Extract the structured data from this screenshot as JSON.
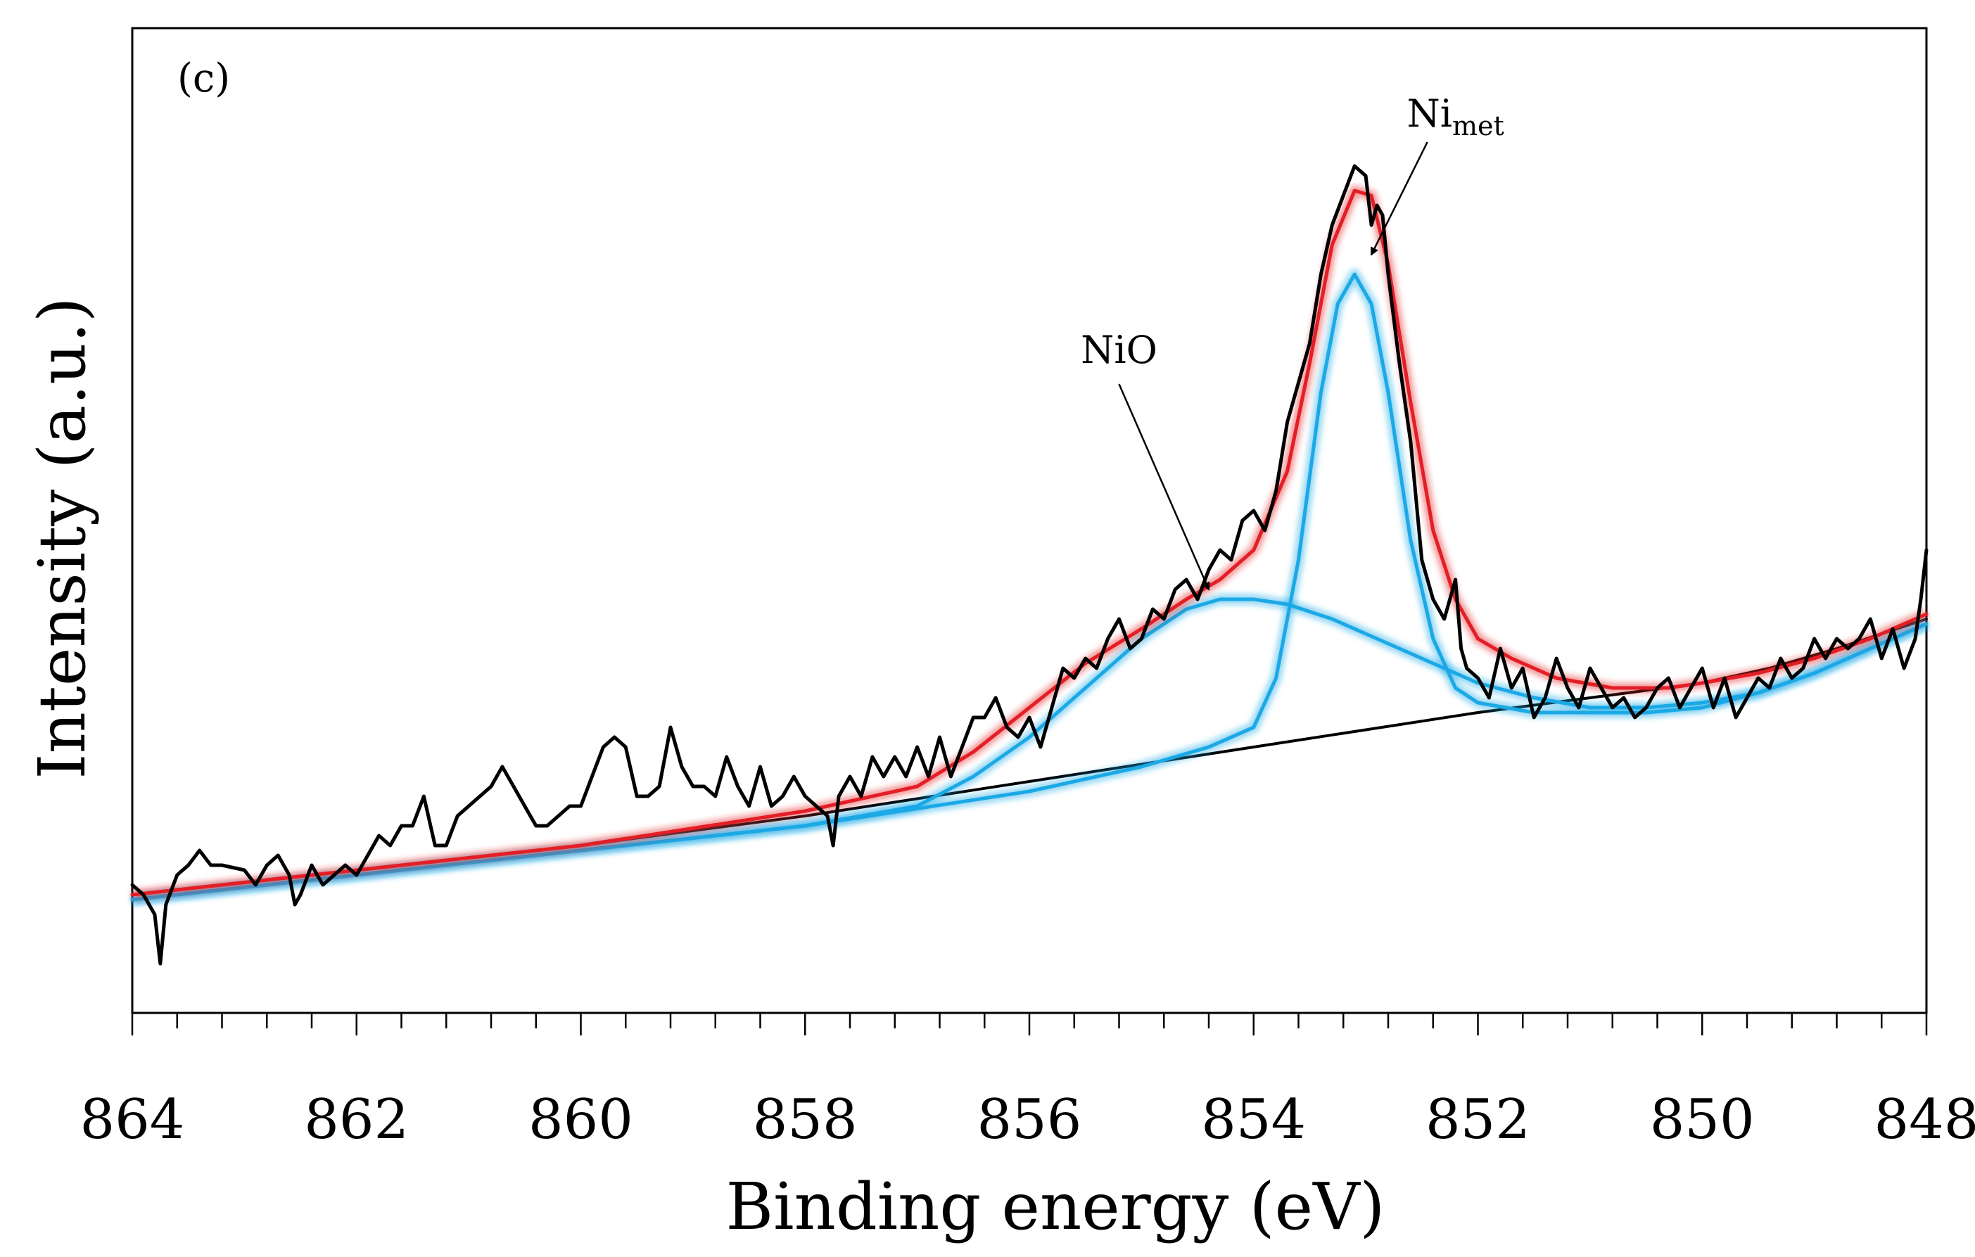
{
  "chart_data": {
    "type": "line",
    "panel_label": "(c)",
    "xlabel": "Binding energy (eV)",
    "ylabel": "Intensity (a.u.)",
    "xlim": [
      864,
      848
    ],
    "x_reversed": true,
    "ylim": [
      0,
      1
    ],
    "y_ticks_shown": false,
    "x_ticks": [
      864,
      862,
      860,
      858,
      856,
      854,
      852,
      850,
      848
    ],
    "x_minor_step": 0.4,
    "grid": false,
    "legend": "none",
    "colors": {
      "experimental": "#000000",
      "envelope": "#e41e26",
      "components": "#1ba9e6",
      "background": "#000000"
    },
    "series": [
      {
        "id": "background",
        "points": [
          [
            864,
            0.12
          ],
          [
            862,
            0.145
          ],
          [
            860,
            0.17
          ],
          [
            858,
            0.2
          ],
          [
            856,
            0.235
          ],
          [
            854,
            0.27
          ],
          [
            852,
            0.305
          ],
          [
            851,
            0.32
          ],
          [
            850,
            0.335
          ],
          [
            849.4,
            0.35
          ],
          [
            848.8,
            0.37
          ],
          [
            848,
            0.4
          ]
        ]
      },
      {
        "id": "nio-component",
        "points": [
          [
            864,
            0.115
          ],
          [
            862,
            0.14
          ],
          [
            860,
            0.165
          ],
          [
            858,
            0.19
          ],
          [
            857,
            0.21
          ],
          [
            856.5,
            0.24
          ],
          [
            856,
            0.28
          ],
          [
            855.5,
            0.33
          ],
          [
            855,
            0.38
          ],
          [
            854.6,
            0.41
          ],
          [
            854.3,
            0.42
          ],
          [
            854.0,
            0.42
          ],
          [
            853.7,
            0.415
          ],
          [
            853.3,
            0.4
          ],
          [
            853.0,
            0.385
          ],
          [
            852.5,
            0.36
          ],
          [
            852.0,
            0.335
          ],
          [
            851.5,
            0.32
          ],
          [
            851.0,
            0.31
          ],
          [
            850.5,
            0.31
          ],
          [
            850,
            0.315
          ],
          [
            849.5,
            0.325
          ],
          [
            849,
            0.345
          ],
          [
            848.5,
            0.37
          ],
          [
            848,
            0.395
          ]
        ]
      },
      {
        "id": "nimet-component",
        "points": [
          [
            864,
            0.115
          ],
          [
            862,
            0.14
          ],
          [
            860,
            0.165
          ],
          [
            858,
            0.19
          ],
          [
            856,
            0.225
          ],
          [
            855,
            0.25
          ],
          [
            854.4,
            0.27
          ],
          [
            854.0,
            0.29
          ],
          [
            853.8,
            0.34
          ],
          [
            853.6,
            0.46
          ],
          [
            853.4,
            0.63
          ],
          [
            853.25,
            0.72
          ],
          [
            853.1,
            0.75
          ],
          [
            852.95,
            0.72
          ],
          [
            852.8,
            0.63
          ],
          [
            852.6,
            0.48
          ],
          [
            852.4,
            0.38
          ],
          [
            852.2,
            0.33
          ],
          [
            852.0,
            0.315
          ],
          [
            851.5,
            0.305
          ],
          [
            851,
            0.305
          ],
          [
            850.5,
            0.305
          ],
          [
            850,
            0.31
          ],
          [
            849.5,
            0.325
          ],
          [
            849,
            0.345
          ],
          [
            848.5,
            0.37
          ],
          [
            848,
            0.395
          ]
        ]
      },
      {
        "id": "envelope",
        "points": [
          [
            864,
            0.12
          ],
          [
            862,
            0.145
          ],
          [
            860,
            0.17
          ],
          [
            858,
            0.205
          ],
          [
            857,
            0.23
          ],
          [
            856.5,
            0.265
          ],
          [
            856,
            0.31
          ],
          [
            855.5,
            0.355
          ],
          [
            855,
            0.39
          ],
          [
            854.6,
            0.42
          ],
          [
            854.3,
            0.44
          ],
          [
            854.0,
            0.47
          ],
          [
            853.7,
            0.55
          ],
          [
            853.5,
            0.66
          ],
          [
            853.3,
            0.78
          ],
          [
            853.1,
            0.835
          ],
          [
            852.95,
            0.83
          ],
          [
            852.8,
            0.76
          ],
          [
            852.6,
            0.62
          ],
          [
            852.4,
            0.49
          ],
          [
            852.2,
            0.42
          ],
          [
            852.0,
            0.38
          ],
          [
            851.7,
            0.36
          ],
          [
            851.3,
            0.34
          ],
          [
            850.8,
            0.33
          ],
          [
            850.3,
            0.33
          ],
          [
            850,
            0.335
          ],
          [
            849.5,
            0.345
          ],
          [
            849,
            0.36
          ],
          [
            848.5,
            0.38
          ],
          [
            848,
            0.405
          ]
        ]
      },
      {
        "id": "experimental",
        "points": [
          [
            864,
            0.13
          ],
          [
            863.9,
            0.12
          ],
          [
            863.8,
            0.1
          ],
          [
            863.75,
            0.05
          ],
          [
            863.7,
            0.11
          ],
          [
            863.6,
            0.14
          ],
          [
            863.5,
            0.15
          ],
          [
            863.4,
            0.165
          ],
          [
            863.3,
            0.15
          ],
          [
            863.2,
            0.15
          ],
          [
            863.0,
            0.145
          ],
          [
            862.9,
            0.13
          ],
          [
            862.8,
            0.15
          ],
          [
            862.7,
            0.16
          ],
          [
            862.6,
            0.14
          ],
          [
            862.55,
            0.11
          ],
          [
            862.5,
            0.12
          ],
          [
            862.4,
            0.15
          ],
          [
            862.3,
            0.13
          ],
          [
            862.2,
            0.14
          ],
          [
            862.1,
            0.15
          ],
          [
            862.0,
            0.14
          ],
          [
            861.9,
            0.16
          ],
          [
            861.8,
            0.18
          ],
          [
            861.7,
            0.17
          ],
          [
            861.6,
            0.19
          ],
          [
            861.5,
            0.19
          ],
          [
            861.4,
            0.22
          ],
          [
            861.3,
            0.17
          ],
          [
            861.2,
            0.17
          ],
          [
            861.1,
            0.2
          ],
          [
            861.0,
            0.21
          ],
          [
            860.9,
            0.22
          ],
          [
            860.8,
            0.23
          ],
          [
            860.7,
            0.25
          ],
          [
            860.6,
            0.23
          ],
          [
            860.5,
            0.21
          ],
          [
            860.4,
            0.19
          ],
          [
            860.3,
            0.19
          ],
          [
            860.2,
            0.2
          ],
          [
            860.1,
            0.21
          ],
          [
            860.0,
            0.21
          ],
          [
            859.9,
            0.24
          ],
          [
            859.8,
            0.27
          ],
          [
            859.7,
            0.28
          ],
          [
            859.6,
            0.27
          ],
          [
            859.5,
            0.22
          ],
          [
            859.4,
            0.22
          ],
          [
            859.3,
            0.23
          ],
          [
            859.2,
            0.29
          ],
          [
            859.1,
            0.25
          ],
          [
            859.0,
            0.23
          ],
          [
            858.9,
            0.23
          ],
          [
            858.8,
            0.22
          ],
          [
            858.7,
            0.26
          ],
          [
            858.6,
            0.23
          ],
          [
            858.5,
            0.21
          ],
          [
            858.4,
            0.25
          ],
          [
            858.3,
            0.21
          ],
          [
            858.2,
            0.22
          ],
          [
            858.1,
            0.24
          ],
          [
            858.0,
            0.22
          ],
          [
            857.9,
            0.21
          ],
          [
            857.8,
            0.2
          ],
          [
            857.75,
            0.17
          ],
          [
            857.7,
            0.22
          ],
          [
            857.6,
            0.24
          ],
          [
            857.5,
            0.22
          ],
          [
            857.4,
            0.26
          ],
          [
            857.3,
            0.24
          ],
          [
            857.2,
            0.26
          ],
          [
            857.1,
            0.24
          ],
          [
            857.0,
            0.27
          ],
          [
            856.9,
            0.24
          ],
          [
            856.8,
            0.28
          ],
          [
            856.7,
            0.24
          ],
          [
            856.6,
            0.27
          ],
          [
            856.5,
            0.3
          ],
          [
            856.4,
            0.3
          ],
          [
            856.3,
            0.32
          ],
          [
            856.2,
            0.29
          ],
          [
            856.1,
            0.28
          ],
          [
            856.0,
            0.3
          ],
          [
            855.9,
            0.27
          ],
          [
            855.8,
            0.31
          ],
          [
            855.7,
            0.35
          ],
          [
            855.6,
            0.34
          ],
          [
            855.5,
            0.36
          ],
          [
            855.4,
            0.35
          ],
          [
            855.3,
            0.38
          ],
          [
            855.2,
            0.4
          ],
          [
            855.1,
            0.37
          ],
          [
            855.0,
            0.38
          ],
          [
            854.9,
            0.41
          ],
          [
            854.8,
            0.4
          ],
          [
            854.7,
            0.43
          ],
          [
            854.6,
            0.44
          ],
          [
            854.5,
            0.42
          ],
          [
            854.4,
            0.45
          ],
          [
            854.3,
            0.47
          ],
          [
            854.2,
            0.46
          ],
          [
            854.1,
            0.5
          ],
          [
            854.0,
            0.51
          ],
          [
            853.9,
            0.49
          ],
          [
            853.8,
            0.53
          ],
          [
            853.7,
            0.6
          ],
          [
            853.6,
            0.64
          ],
          [
            853.5,
            0.68
          ],
          [
            853.4,
            0.75
          ],
          [
            853.3,
            0.8
          ],
          [
            853.2,
            0.83
          ],
          [
            853.1,
            0.86
          ],
          [
            853.0,
            0.85
          ],
          [
            852.95,
            0.8
          ],
          [
            852.9,
            0.82
          ],
          [
            852.85,
            0.81
          ],
          [
            852.8,
            0.75
          ],
          [
            852.7,
            0.66
          ],
          [
            852.6,
            0.58
          ],
          [
            852.5,
            0.46
          ],
          [
            852.4,
            0.42
          ],
          [
            852.3,
            0.4
          ],
          [
            852.2,
            0.44
          ],
          [
            852.15,
            0.37
          ],
          [
            852.1,
            0.35
          ],
          [
            852.0,
            0.34
          ],
          [
            851.9,
            0.32
          ],
          [
            851.8,
            0.37
          ],
          [
            851.7,
            0.33
          ],
          [
            851.6,
            0.35
          ],
          [
            851.5,
            0.3
          ],
          [
            851.4,
            0.32
          ],
          [
            851.3,
            0.36
          ],
          [
            851.2,
            0.33
          ],
          [
            851.1,
            0.31
          ],
          [
            851.0,
            0.35
          ],
          [
            850.9,
            0.33
          ],
          [
            850.8,
            0.31
          ],
          [
            850.7,
            0.32
          ],
          [
            850.6,
            0.3
          ],
          [
            850.5,
            0.31
          ],
          [
            850.4,
            0.33
          ],
          [
            850.3,
            0.34
          ],
          [
            850.2,
            0.31
          ],
          [
            850.1,
            0.33
          ],
          [
            850.0,
            0.35
          ],
          [
            849.9,
            0.31
          ],
          [
            849.8,
            0.34
          ],
          [
            849.7,
            0.3
          ],
          [
            849.6,
            0.32
          ],
          [
            849.5,
            0.34
          ],
          [
            849.4,
            0.33
          ],
          [
            849.3,
            0.36
          ],
          [
            849.2,
            0.34
          ],
          [
            849.1,
            0.35
          ],
          [
            849.0,
            0.38
          ],
          [
            848.9,
            0.36
          ],
          [
            848.8,
            0.38
          ],
          [
            848.7,
            0.37
          ],
          [
            848.6,
            0.38
          ],
          [
            848.5,
            0.4
          ],
          [
            848.4,
            0.36
          ],
          [
            848.3,
            0.39
          ],
          [
            848.2,
            0.35
          ],
          [
            848.1,
            0.38
          ],
          [
            848.05,
            0.42
          ],
          [
            848.0,
            0.47
          ]
        ]
      }
    ],
    "annotations": [
      {
        "text": "NiO",
        "text_at": [
          855.2,
          0.66
        ],
        "arrow_to": [
          854.4,
          0.43
        ]
      },
      {
        "text": "Ni",
        "subscript": "met",
        "text_at": [
          852.2,
          0.9
        ],
        "arrow_to": [
          852.95,
          0.77
        ]
      }
    ]
  }
}
